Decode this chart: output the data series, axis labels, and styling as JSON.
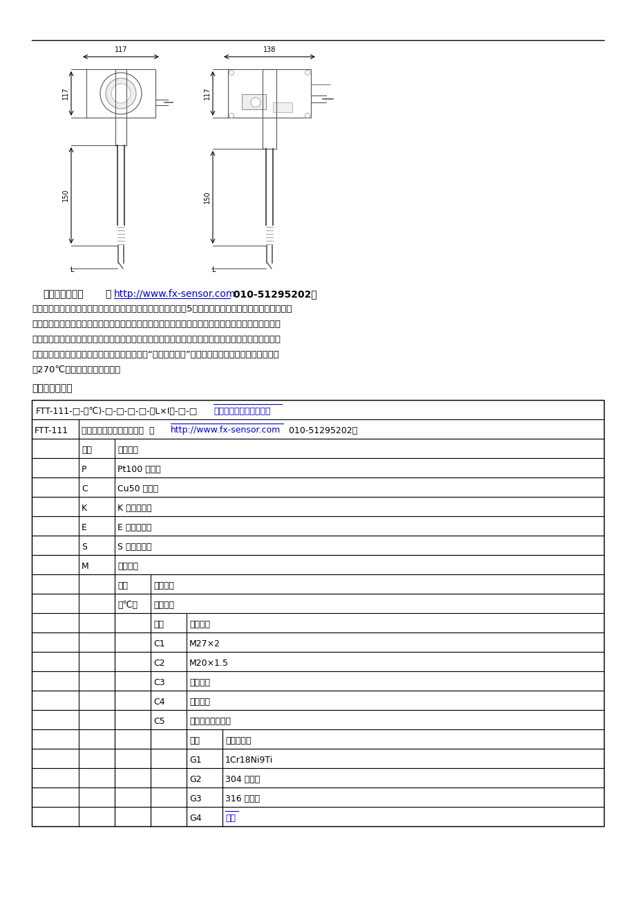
{
  "page_bg": "#ffffff",
  "usage_title": "使用注意事项：",
  "usage_url": "http://www.fx-sensor.com",
  "usage_phone": " 010-51295202）",
  "product_selection_title": "　　产品选型：",
  "model_formula_prefix": "FTT-111-□-（℃)-□-□-□-□-（L×I）-□-□",
  "model_formula_link": "一体化带显示温度变送器",
  "dim_117_top": "117",
  "dim_138": "138",
  "dim_117_side_left": "117",
  "dim_117_side_right": "117",
  "dim_150_left": "150",
  "dim_150_right": "150",
  "all_rows": [
    [
      2,
      1,
      "代码",
      "输入类型",
      true,
      false
    ],
    [
      3,
      1,
      "P",
      "Pt100 热电阻",
      false,
      false
    ],
    [
      4,
      1,
      "C",
      "Cu50 热电阻",
      false,
      false
    ],
    [
      5,
      1,
      "K",
      "K 分度热电偶",
      false,
      false
    ],
    [
      6,
      1,
      "E",
      "E 分度热电偶",
      false,
      false
    ],
    [
      7,
      1,
      "S",
      "S 分度热电偶",
      false,
      false
    ],
    [
      8,
      1,
      "M",
      "用户指定",
      false,
      false
    ],
    [
      9,
      2,
      "代码",
      "测量范围",
      true,
      false
    ],
    [
      10,
      2,
      "（℃）",
      "用户指明",
      false,
      false
    ],
    [
      11,
      3,
      "代码",
      "安装方式",
      true,
      false
    ],
    [
      12,
      3,
      "C1",
      "M27×2",
      false,
      false
    ],
    [
      13,
      3,
      "C2",
      "M20×1.5",
      false,
      false
    ],
    [
      14,
      3,
      "C3",
      "可动法兰",
      false,
      false
    ],
    [
      15,
      3,
      "C4",
      "固定法兰",
      false,
      false
    ],
    [
      16,
      3,
      "C5",
      "其它（用户指定）",
      false,
      false
    ],
    [
      17,
      4,
      "代码",
      "保护管材质",
      true,
      false
    ],
    [
      18,
      4,
      "G1",
      "1Cr18Ni9Ti",
      false,
      false
    ],
    [
      19,
      4,
      "G2",
      "304 不锈钢",
      false,
      false
    ],
    [
      20,
      4,
      "G3",
      "316 不锈钢",
      false,
      false
    ],
    [
      21,
      4,
      "G4",
      "陶瓷",
      false,
      true
    ]
  ]
}
